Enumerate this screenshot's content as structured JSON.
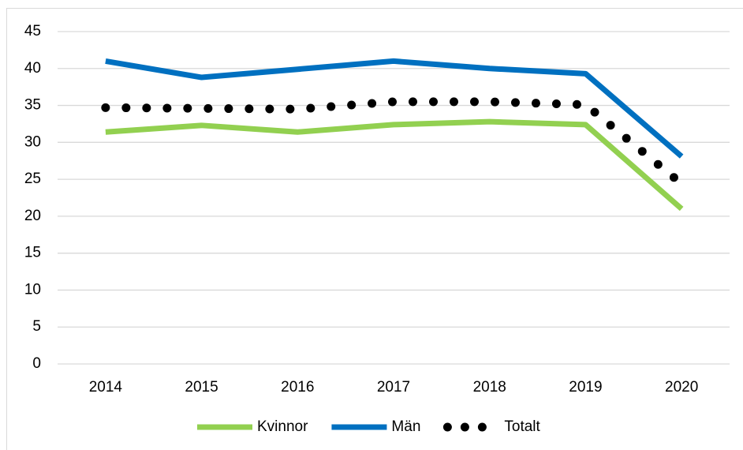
{
  "chart_data": {
    "type": "line",
    "categories": [
      "2014",
      "2015",
      "2016",
      "2017",
      "2018",
      "2019",
      "2020"
    ],
    "series": [
      {
        "name": "Kvinnor",
        "color": "#92d050",
        "style": "solid",
        "values": [
          31.4,
          32.3,
          31.4,
          32.4,
          32.8,
          32.4,
          21.0
        ]
      },
      {
        "name": "Män",
        "color": "#0070c0",
        "style": "solid",
        "values": [
          41.0,
          38.8,
          39.9,
          41.0,
          40.0,
          39.3,
          28.1
        ]
      },
      {
        "name": "Totalt",
        "color": "#000000",
        "style": "dotted",
        "values": [
          34.7,
          34.6,
          34.5,
          35.5,
          35.5,
          35.1,
          24.4
        ]
      }
    ],
    "ylim": [
      0,
      45
    ],
    "yticks": [
      0,
      5,
      10,
      15,
      20,
      25,
      30,
      35,
      40,
      45
    ],
    "grid": true,
    "legend": "bottom"
  }
}
